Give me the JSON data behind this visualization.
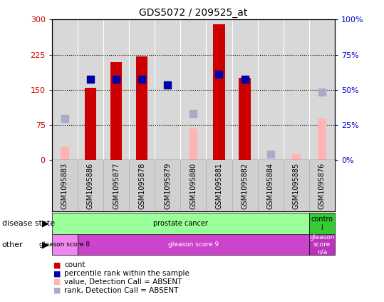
{
  "title": "GDS5072 / 209525_at",
  "samples": [
    "GSM1095883",
    "GSM1095886",
    "GSM1095877",
    "GSM1095878",
    "GSM1095879",
    "GSM1095880",
    "GSM1095881",
    "GSM1095882",
    "GSM1095884",
    "GSM1095885",
    "GSM1095876"
  ],
  "count_values": [
    null,
    155,
    210,
    222,
    null,
    null,
    290,
    175,
    null,
    null,
    null
  ],
  "percentile_values": [
    null,
    172,
    172,
    172,
    160,
    null,
    183,
    172,
    null,
    null,
    null
  ],
  "absent_value_values": [
    28,
    null,
    null,
    null,
    null,
    68,
    null,
    null,
    null,
    13,
    88
  ],
  "absent_rank_values": [
    88,
    null,
    null,
    null,
    null,
    100,
    null,
    null,
    13,
    null,
    145
  ],
  "count_color": "#cc0000",
  "percentile_color": "#0000aa",
  "absent_value_color": "#ffb3b3",
  "absent_rank_color": "#aaaacc",
  "ylim_left": [
    0,
    300
  ],
  "ylim_right": [
    0,
    100
  ],
  "yticks_left": [
    0,
    75,
    150,
    225,
    300
  ],
  "ytick_labels_left": [
    "0",
    "75",
    "150",
    "225",
    "300"
  ],
  "yticks_right": [
    0,
    25,
    50,
    75,
    100
  ],
  "ytick_labels_right": [
    "0%",
    "25%",
    "50%",
    "75%",
    "100%"
  ],
  "hlines": [
    75,
    150,
    225
  ],
  "disease_state_groups": [
    {
      "label": "prostate cancer",
      "start": 0,
      "end": 10,
      "color": "#99ff99"
    },
    {
      "label": "contro\nl",
      "start": 10,
      "end": 11,
      "color": "#33cc33"
    }
  ],
  "other_groups": [
    {
      "label": "gleason score 8",
      "start": 0,
      "end": 1,
      "color": "#ee88ee"
    },
    {
      "label": "gleason score 9",
      "start": 1,
      "end": 10,
      "color": "#cc44cc"
    },
    {
      "label": "gleason\nscore\nn/a",
      "start": 10,
      "end": 11,
      "color": "#bb33bb"
    }
  ],
  "legend_items": [
    {
      "label": "count",
      "color": "#cc0000"
    },
    {
      "label": "percentile rank within the sample",
      "color": "#0000aa"
    },
    {
      "label": "value, Detection Call = ABSENT",
      "color": "#ffb3b3"
    },
    {
      "label": "rank, Detection Call = ABSENT",
      "color": "#aaaacc"
    }
  ],
  "left_label_color": "#cc0000",
  "right_label_color": "#0000cc",
  "bar_width": 0.45,
  "marker_size": 7,
  "plot_bg": "#d8d8d8",
  "xtick_bg": "#d0d0d0"
}
